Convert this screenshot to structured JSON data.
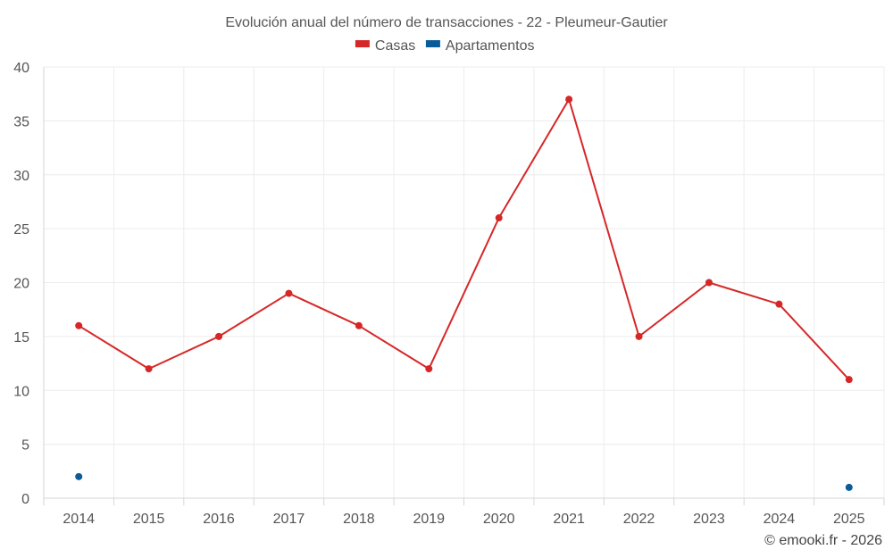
{
  "chart_data": {
    "type": "line",
    "title": "Evolución anual del número de transacciones - 22 - Pleumeur-Gautier",
    "xlabel": "",
    "ylabel": "",
    "categories": [
      "2014",
      "2015",
      "2016",
      "2017",
      "2018",
      "2019",
      "2020",
      "2021",
      "2022",
      "2023",
      "2024",
      "2025"
    ],
    "ylim": [
      0,
      40
    ],
    "yticks": [
      0,
      5,
      10,
      15,
      20,
      25,
      30,
      35,
      40
    ],
    "grid": true,
    "legend_position": "top-center",
    "series": [
      {
        "name": "Casas",
        "color": "#d62728",
        "values": [
          16,
          12,
          15,
          19,
          16,
          12,
          26,
          37,
          15,
          20,
          18,
          11
        ]
      },
      {
        "name": "Apartamentos",
        "color": "#0a5c99",
        "values": [
          2,
          null,
          null,
          null,
          null,
          null,
          null,
          null,
          null,
          null,
          null,
          1
        ]
      }
    ]
  },
  "credit": "© emooki.fr - 2026"
}
